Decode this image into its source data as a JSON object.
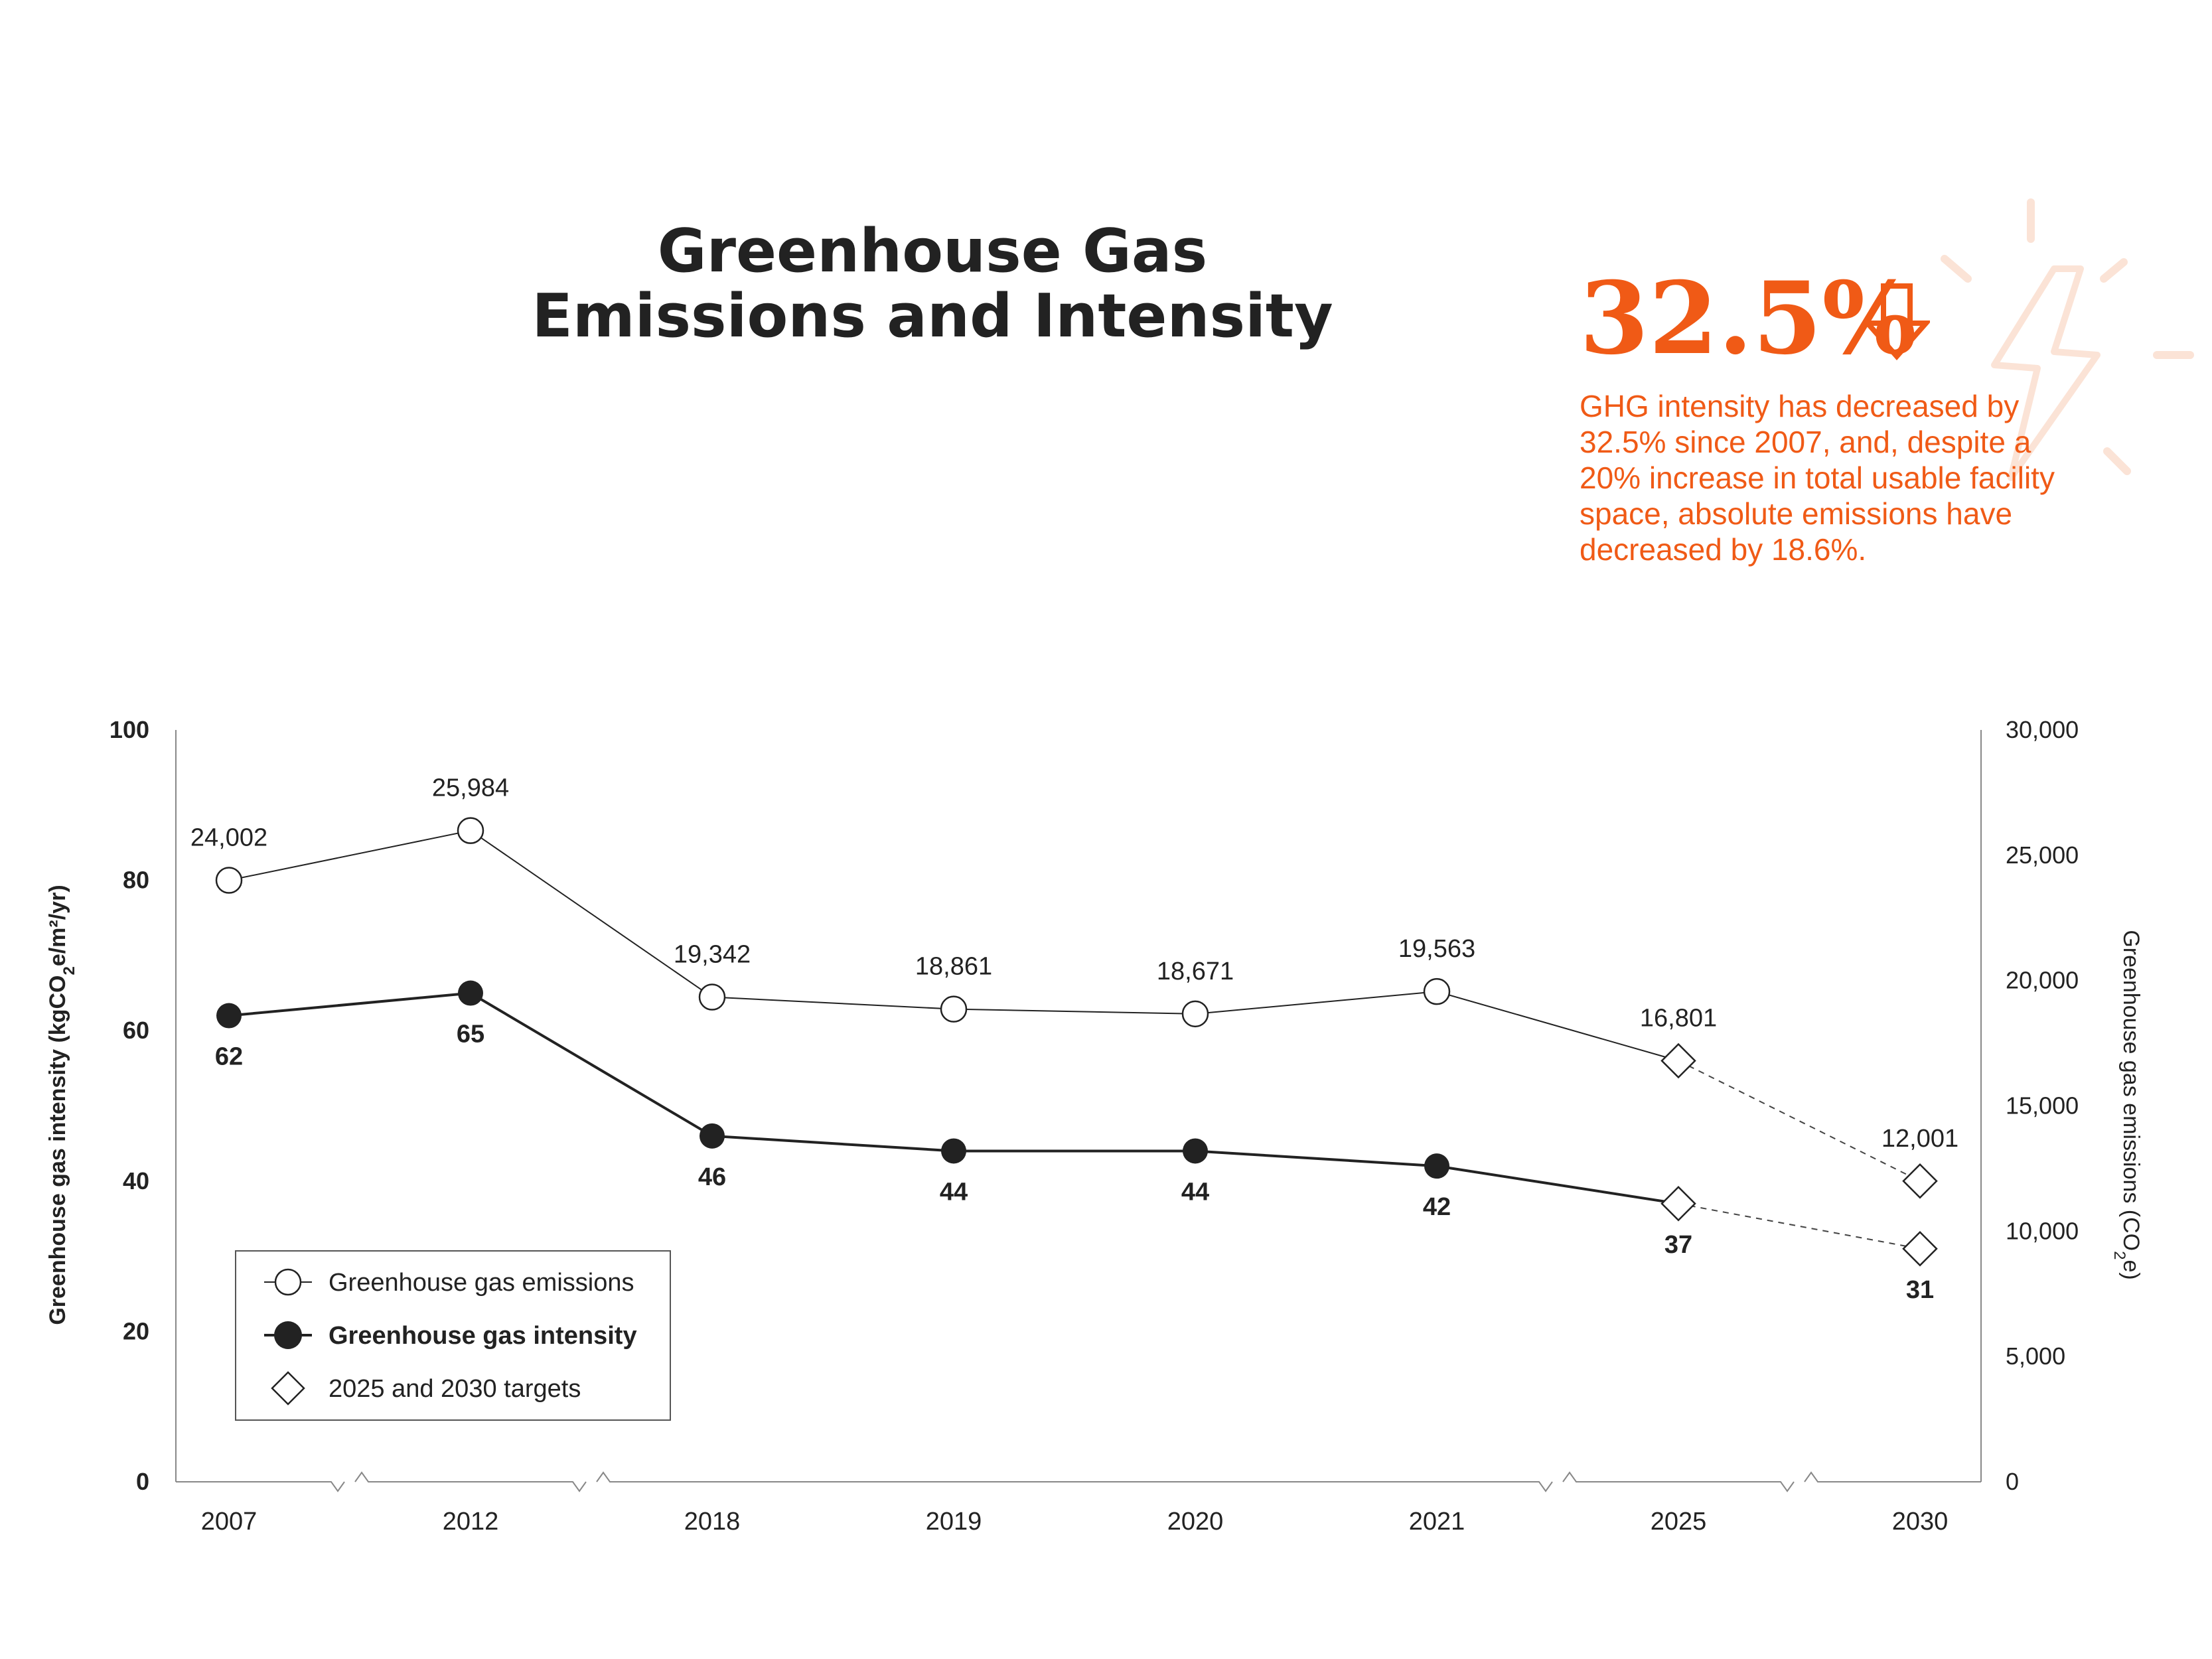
{
  "title_lines": [
    "Greenhouse Gas",
    "Emissions and Intensity"
  ],
  "highlight": {
    "stat": "32.5%",
    "text": "GHG intensity has decreased by 32.5% since 2007, and, despite a 20% increase in total usable facility space, absolute emissions have decreased by 18.6%.",
    "color": "#f05a16",
    "icon": "arrow-down-icon",
    "decor_icon": "lightning-bolt-icon"
  },
  "chart_data": {
    "type": "line",
    "categories": [
      "2007",
      "2012",
      "2018",
      "2019",
      "2020",
      "2021",
      "2025",
      "2030"
    ],
    "axis_breaks_after": [
      "2007",
      "2012",
      "2021",
      "2025"
    ],
    "y_left": {
      "label_parts": [
        "Greenhouse gas intensity (kgCO",
        "2",
        "e/m²/yr)"
      ],
      "ylim": [
        0,
        100
      ],
      "ticks": [
        0,
        20,
        40,
        60,
        80,
        100
      ],
      "tick_labels": [
        "0",
        "20",
        "40",
        "60",
        "80",
        "100"
      ]
    },
    "y_right": {
      "label_parts": [
        "Greenhouse gas emissions (CO",
        "2",
        "e)"
      ],
      "ylim": [
        0,
        30000
      ],
      "ticks": [
        0,
        5000,
        10000,
        15000,
        20000,
        25000,
        30000
      ],
      "tick_labels": [
        "0",
        "5,000",
        "10,000",
        "15,000",
        "20,000",
        "25,000",
        "30,000"
      ]
    },
    "grid": false,
    "legend_position": "bottom-left",
    "series": [
      {
        "name": "Greenhouse gas emissions",
        "axis": "right",
        "marker": "open-circle",
        "target_marker": "open-diamond",
        "values": [
          24002,
          25984,
          19342,
          18861,
          18671,
          19563,
          16801,
          12001
        ],
        "labels": [
          "24,002",
          "25,984",
          "19,342",
          "18,861",
          "18,671",
          "19,563",
          "16,801",
          "12,001"
        ],
        "target_from_index": 6,
        "label_position": "above"
      },
      {
        "name": "Greenhouse gas intensity",
        "axis": "left",
        "marker": "filled-circle",
        "target_marker": "open-diamond",
        "values": [
          62,
          65,
          46,
          44,
          44,
          42,
          37,
          31
        ],
        "labels": [
          "62",
          "65",
          "46",
          "44",
          "44",
          "42",
          "37",
          "31"
        ],
        "target_from_index": 6,
        "label_position": "below"
      }
    ],
    "legend": [
      {
        "label": "Greenhouse gas emissions",
        "marker": "open-circle",
        "bold": false
      },
      {
        "label": "Greenhouse gas intensity",
        "marker": "filled-circle",
        "bold": true
      },
      {
        "label": "2025 and 2030 targets",
        "marker": "open-diamond",
        "bold": false
      }
    ]
  }
}
